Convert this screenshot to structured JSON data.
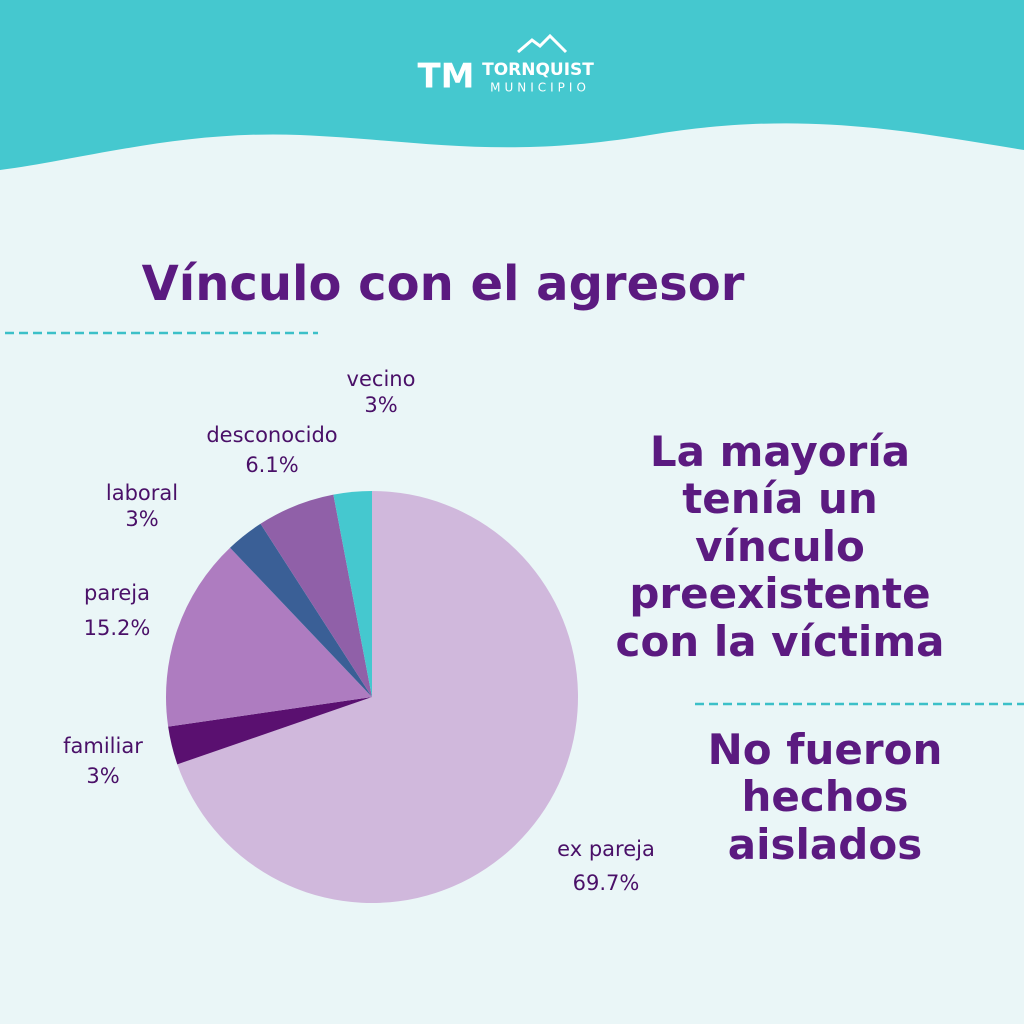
{
  "header": {
    "logo_mark": "TM",
    "logo_name": "TORNQUIST",
    "logo_sub": "MUNICIPIO"
  },
  "chart_data": {
    "type": "pie",
    "title": "Vínculo con el agresor",
    "categories": [
      "ex pareja",
      "familiar",
      "pareja",
      "laboral",
      "desconocido",
      "vecino"
    ],
    "values": [
      69.7,
      3,
      15.2,
      3,
      6.1,
      3
    ],
    "value_labels": [
      "69.7%",
      "3%",
      "15.2%",
      "3%",
      "6.1%",
      "3%"
    ],
    "colors": [
      "#d0b8dc",
      "#5a1070",
      "#ae7cc0",
      "#3a5f96",
      "#9060a8",
      "#45c8cf"
    ]
  },
  "notes": [
    "La mayoría tenía un vínculo preexistente con la víctima",
    "No fueron hechos aislados"
  ]
}
